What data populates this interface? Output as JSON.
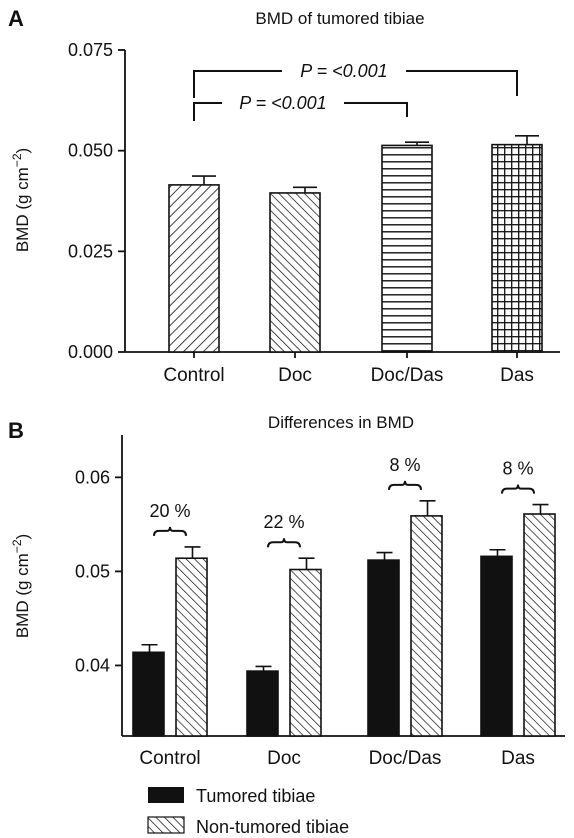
{
  "chart_data": [
    {
      "panel": "A",
      "type": "bar",
      "title": "BMD of tumored tibiae",
      "ylabel": "BMD (g cm⁻²)",
      "categories": [
        "Control",
        "Doc",
        "Doc/Das",
        "Das"
      ],
      "values": [
        0.0415,
        0.0395,
        0.0513,
        0.0515
      ],
      "errors": [
        0.0022,
        0.0014,
        0.0008,
        0.0022
      ],
      "ylim": [
        0,
        0.075
      ],
      "yticks": [
        "0.000",
        "0.025",
        "0.050",
        "0.075"
      ],
      "patterns": [
        "diagonal-right",
        "diagonal-left",
        "horizontal",
        "grid"
      ],
      "annotations": [
        {
          "label": "P = <0.001",
          "from": "Control",
          "to": "Doc/Das"
        },
        {
          "label": "P = <0.001",
          "from": "Control",
          "to": "Das"
        }
      ]
    },
    {
      "panel": "B",
      "type": "bar",
      "title": "Differences in BMD",
      "ylabel": "BMD (g cm⁻²)",
      "categories": [
        "Control",
        "Doc",
        "Doc/Das",
        "Das"
      ],
      "series": [
        {
          "name": "Tumored tibiae",
          "values": [
            0.0414,
            0.0394,
            0.0512,
            0.0516
          ],
          "errors": [
            0.0008,
            0.0005,
            0.0008,
            0.0007
          ],
          "fill": "#111111"
        },
        {
          "name": "Non-tumored tibiae",
          "values": [
            0.0514,
            0.0502,
            0.0559,
            0.0561
          ],
          "errors": [
            0.0012,
            0.0012,
            0.0016,
            0.001
          ],
          "fill": "hatch"
        }
      ],
      "differences": [
        "20 %",
        "22 %",
        "8 %",
        "8 %"
      ],
      "ylim": [
        0.0325,
        0.0645
      ],
      "yticks": [
        "0.04",
        "0.05",
        "0.06"
      ],
      "legend_position": "bottom-left"
    }
  ]
}
